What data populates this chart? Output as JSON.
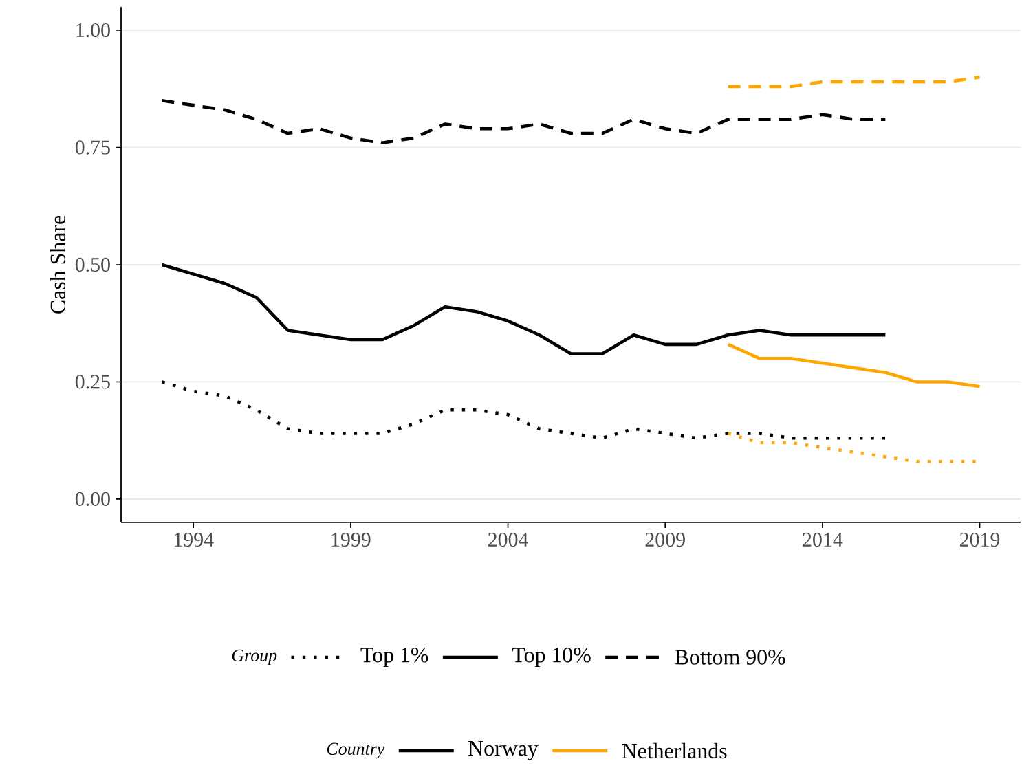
{
  "chart_data": {
    "type": "line",
    "ylabel": "Cash Share",
    "xlim": [
      1991.7,
      2020.3
    ],
    "ylim": [
      -0.05,
      1.05
    ],
    "xticks": [
      1994,
      1999,
      2004,
      2009,
      2014,
      2019
    ],
    "yticks": [
      {
        "value": 0,
        "label": "0.00"
      },
      {
        "value": 0.25,
        "label": "0.25"
      },
      {
        "value": 0.5,
        "label": "0.50"
      },
      {
        "value": 0.75,
        "label": "0.75"
      },
      {
        "value": 1,
        "label": "1.00"
      }
    ],
    "grid": "y",
    "annotations": [
      "Group",
      "Top 1%",
      "Top 10%",
      "Bottom 90%",
      "Country",
      "Norway",
      "Netherlands"
    ],
    "series": [
      {
        "color": "#000000",
        "line_style": "dotted",
        "x": [
          1993,
          1994,
          1995,
          1996,
          1997,
          1998,
          1999,
          2000,
          2001,
          2002,
          2003,
          2004,
          2005,
          2006,
          2007,
          2008,
          2009,
          2010,
          2011,
          2012,
          2013,
          2014,
          2015,
          2016
        ],
        "values": [
          0.25,
          0.23,
          0.22,
          0.19,
          0.15,
          0.14,
          0.14,
          0.14,
          0.16,
          0.19,
          0.19,
          0.18,
          0.15,
          0.14,
          0.13,
          0.15,
          0.14,
          0.13,
          0.14,
          0.14,
          0.13,
          0.13,
          0.13,
          0.13
        ]
      },
      {
        "color": "#000000",
        "line_style": "solid",
        "x": [
          1993,
          1994,
          1995,
          1996,
          1997,
          1998,
          1999,
          2000,
          2001,
          2002,
          2003,
          2004,
          2005,
          2006,
          2007,
          2008,
          2009,
          2010,
          2011,
          2012,
          2013,
          2014,
          2015,
          2016
        ],
        "values": [
          0.5,
          0.48,
          0.46,
          0.43,
          0.36,
          0.35,
          0.34,
          0.34,
          0.37,
          0.41,
          0.4,
          0.38,
          0.35,
          0.31,
          0.31,
          0.35,
          0.33,
          0.33,
          0.35,
          0.36,
          0.35,
          0.35,
          0.35,
          0.35
        ]
      },
      {
        "color": "#000000",
        "line_style": "dashed",
        "x": [
          1993,
          1994,
          1995,
          1996,
          1997,
          1998,
          1999,
          2000,
          2001,
          2002,
          2003,
          2004,
          2005,
          2006,
          2007,
          2008,
          2009,
          2010,
          2011,
          2012,
          2013,
          2014,
          2015,
          2016
        ],
        "values": [
          0.85,
          0.84,
          0.83,
          0.81,
          0.78,
          0.79,
          0.77,
          0.76,
          0.77,
          0.8,
          0.79,
          0.79,
          0.8,
          0.78,
          0.78,
          0.81,
          0.79,
          0.78,
          0.81,
          0.81,
          0.81,
          0.82,
          0.81,
          0.81
        ]
      },
      {
        "color": "#ffa500",
        "line_style": "dotted",
        "x": [
          2011,
          2012,
          2013,
          2014,
          2015,
          2016,
          2017,
          2018,
          2019
        ],
        "values": [
          0.14,
          0.12,
          0.12,
          0.11,
          0.1,
          0.09,
          0.08,
          0.08,
          0.08
        ]
      },
      {
        "color": "#ffa500",
        "line_style": "solid",
        "x": [
          2011,
          2012,
          2013,
          2014,
          2015,
          2016,
          2017,
          2018,
          2019
        ],
        "values": [
          0.33,
          0.3,
          0.3,
          0.29,
          0.28,
          0.27,
          0.25,
          0.25,
          0.24
        ]
      },
      {
        "color": "#ffa500",
        "line_style": "dashed",
        "x": [
          2011,
          2012,
          2013,
          2014,
          2015,
          2016,
          2017,
          2018,
          2019
        ],
        "values": [
          0.88,
          0.88,
          0.88,
          0.89,
          0.89,
          0.89,
          0.89,
          0.89,
          0.9
        ]
      }
    ]
  }
}
